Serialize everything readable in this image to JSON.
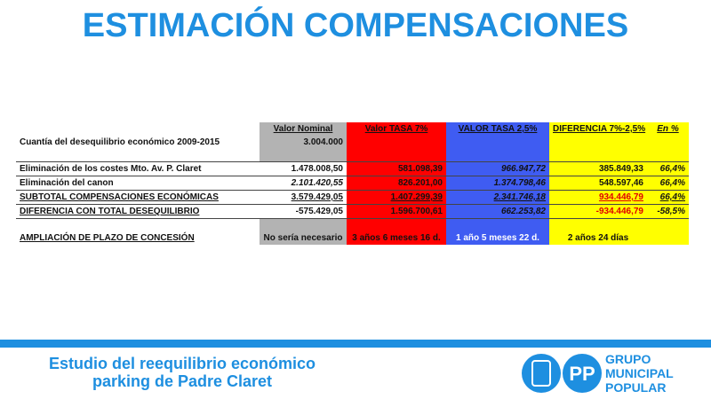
{
  "header": {
    "title": "ESTIMACIÓN COMPENSACIONES"
  },
  "table": {
    "columns": [
      "",
      "Valor Nominal",
      "Valor TASA 7%",
      "VALOR TASA 2,5%",
      "DIFERENCIA 7%-2,5%",
      "En %"
    ],
    "rows": [
      [
        "Cuantía del desequilibrio económico 2009-2015",
        "3.004.000",
        "",
        "",
        "",
        ""
      ],
      [
        "",
        "",
        "",
        "",
        "",
        ""
      ],
      [
        "Eliminación de los costes Mto. Av. P. Claret",
        "1.478.008,50",
        "581.098,39",
        "966.947,72",
        "385.849,33",
        "66,4%"
      ],
      [
        "Eliminación del canon",
        "2.101.420,55",
        "826.201,00",
        "1.374.798,46",
        "548.597,46",
        "66,4%"
      ],
      [
        "SUBTOTAL COMPENSACIONES ECONÓMICAS",
        "3.579.429,05",
        "1.407.299,39",
        "2.341.746,18",
        "934.446,79",
        "66,4%"
      ],
      [
        "DIFERENCIA CON TOTAL DESEQUILIBRIO",
        "-575.429,05",
        "1.596.700,61",
        "662.253,82",
        "-934.446,79",
        "-58,5%"
      ],
      [
        "",
        "",
        "",
        "",
        "",
        ""
      ],
      [
        "AMPLIACIÓN DE PLAZO DE CONCESIÓN",
        "No sería necesario",
        "3 años 6 meses 16 d.",
        "1 año 5 meses 22 d.",
        "2 años 24 días",
        ""
      ]
    ]
  },
  "footer": {
    "lines": [
      "Estudio del reequilibrio económico",
      "parking de Padre Claret"
    ]
  },
  "logo": {
    "initials": "PP",
    "lines": [
      "GRUPO",
      "MUNICIPAL",
      "POPULAR"
    ]
  }
}
